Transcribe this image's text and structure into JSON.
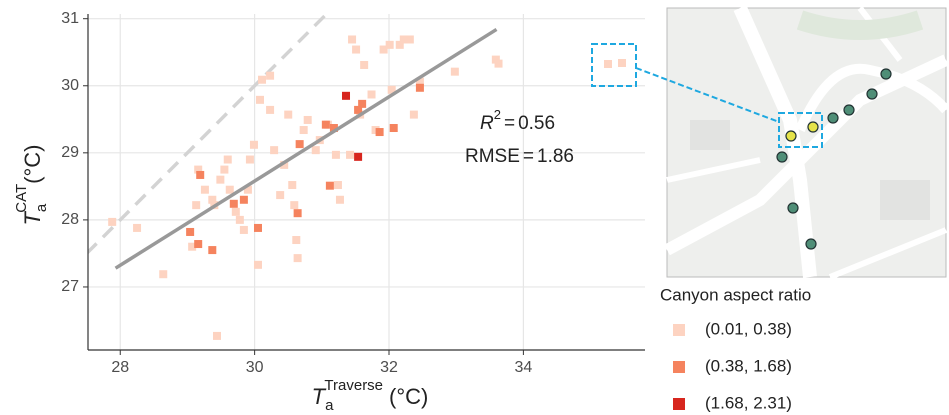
{
  "chart_data": {
    "type": "scatter",
    "x_label": {
      "base": "T",
      "sub": "a",
      "sup": "Traverse",
      "unit": "(°C)"
    },
    "y_label": {
      "base": "T",
      "sub": "a",
      "sup": "CAT",
      "unit": "(°C)"
    },
    "xlim": [
      27.52,
      35.81
    ],
    "ylim": [
      26.06,
      31.07
    ],
    "xticks": [
      28,
      30,
      32,
      34
    ],
    "yticks": [
      27,
      28,
      29,
      30,
      31
    ],
    "grid": true,
    "legend_title": "Canyon aspect ratio",
    "series": [
      {
        "name": "(0.01, 0.38)",
        "color": "#fdd3c1",
        "x": [
          27.88,
          28.25,
          28.64,
          29.07,
          29.44,
          29.13,
          29.16,
          29.26,
          29.37,
          29.4,
          29.49,
          29.55,
          29.6,
          29.63,
          29.72,
          29.78,
          29.84,
          29.9,
          29.93,
          29.99,
          30.05,
          30.08,
          30.11,
          30.23,
          30.23,
          30.29,
          30.38,
          30.44,
          30.5,
          30.56,
          30.59,
          30.62,
          30.64,
          30.73,
          30.79,
          30.91,
          30.97,
          31.09,
          31.21,
          31.24,
          31.27,
          31.42,
          31.45,
          31.51,
          31.57,
          31.63,
          31.74,
          31.8,
          31.92,
          32.01,
          32.04,
          32.16,
          32.22,
          32.31,
          32.37,
          32.46,
          32.98,
          33.59,
          33.63
        ],
        "y": [
          27.97,
          27.88,
          27.19,
          27.6,
          26.27,
          28.22,
          28.75,
          28.45,
          28.3,
          28.22,
          28.6,
          28.75,
          28.9,
          28.45,
          28.12,
          28.0,
          27.85,
          28.45,
          28.9,
          29.12,
          27.33,
          29.79,
          30.09,
          30.15,
          29.64,
          29.04,
          28.37,
          28.82,
          29.57,
          28.52,
          28.22,
          27.7,
          27.43,
          29.34,
          29.49,
          29.04,
          29.19,
          29.42,
          28.97,
          28.52,
          28.3,
          28.97,
          30.69,
          30.54,
          29.57,
          30.31,
          29.87,
          29.34,
          30.54,
          30.61,
          29.94,
          30.61,
          30.69,
          30.69,
          29.57,
          30.06,
          30.21,
          30.39,
          30.33
        ]
      },
      {
        "name": "(0.38, 1.68)",
        "color": "#f5835e",
        "x": [
          29.04,
          29.16,
          29.37,
          29.69,
          29.84,
          30.05,
          30.64,
          30.67,
          31.06,
          31.18,
          31.12,
          31.54,
          31.6,
          32.07,
          32.46,
          31.86,
          29.19
        ],
        "y": [
          27.82,
          27.64,
          27.55,
          28.24,
          28.3,
          27.88,
          28.1,
          29.13,
          29.42,
          29.37,
          28.51,
          29.64,
          29.73,
          29.37,
          29.97,
          29.31,
          28.67
        ]
      },
      {
        "name": "(1.68, 2.31)",
        "color": "#d7261e",
        "x": [
          31.54,
          31.36
        ],
        "y": [
          28.94,
          29.85
        ]
      }
    ],
    "fit_line": {
      "x": [
        27.93,
        33.6
      ],
      "y": [
        27.28,
        30.84
      ]
    },
    "reference_line": {
      "x": [
        27.5,
        31.1
      ],
      "y": [
        27.5,
        31.1
      ]
    },
    "annotations": {
      "r2_symbol": "R",
      "r2_exponent": "2",
      "equals": "=",
      "r2_value": 0.56,
      "rmse_label": "RMSE",
      "rmse_value": 1.86
    }
  }
}
